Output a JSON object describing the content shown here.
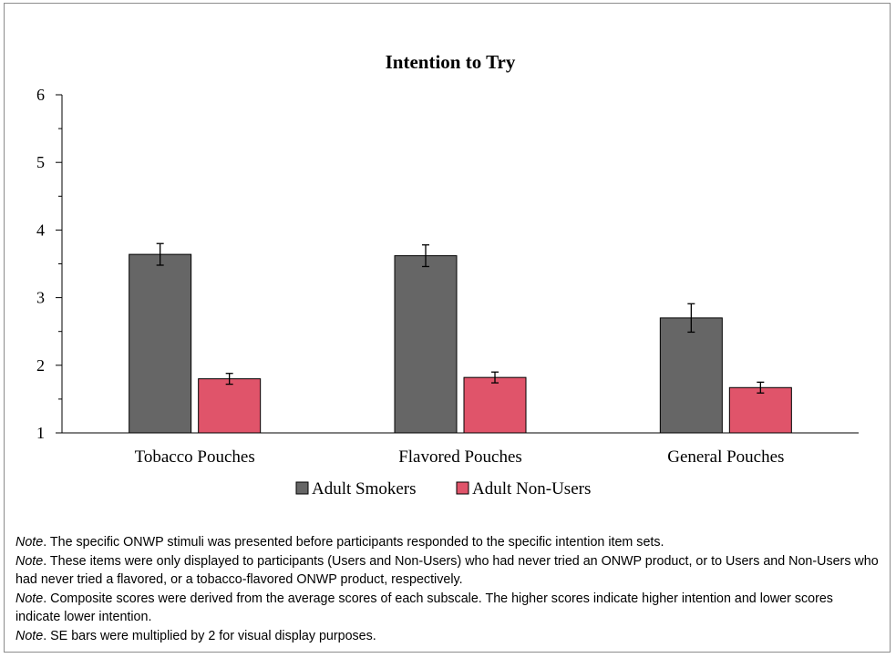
{
  "chart_data": {
    "type": "bar",
    "title": "Intention to Try",
    "xlabel": "",
    "ylabel": "",
    "ylim": [
      1,
      6
    ],
    "yticks": [
      "1",
      "2",
      "3",
      "4",
      "5",
      "6"
    ],
    "categories": [
      "Tobacco Pouches",
      "Flavored Pouches",
      "General Pouches"
    ],
    "series": [
      {
        "name": "Adult Smokers",
        "color": "#666666",
        "values": [
          3.64,
          3.62,
          2.7
        ],
        "error": [
          0.16,
          0.16,
          0.21
        ]
      },
      {
        "name": "Adult Non-Users",
        "color": "#e0546a",
        "values": [
          1.8,
          1.82,
          1.67
        ],
        "error": [
          0.08,
          0.08,
          0.08
        ]
      }
    ],
    "legend_position": "bottom",
    "grid": false
  },
  "notes": [
    {
      "label": "Note",
      "text": ". The specific ONWP stimuli was presented before participants responded to the specific intention item sets."
    },
    {
      "label": "Note",
      "text": ". These items were only displayed to participants (Users and Non-Users) who had never tried an ONWP product, or to Users and Non-Users who had never tried a flavored, or a tobacco-flavored ONWP product, respectively."
    },
    {
      "label": "Note",
      "text": ". Composite scores were derived from the average scores of each subscale. The higher scores indicate higher intention and lower scores indicate lower intention."
    },
    {
      "label": "Note",
      "text": ". SE bars were multiplied by 2 for visual display purposes."
    }
  ]
}
